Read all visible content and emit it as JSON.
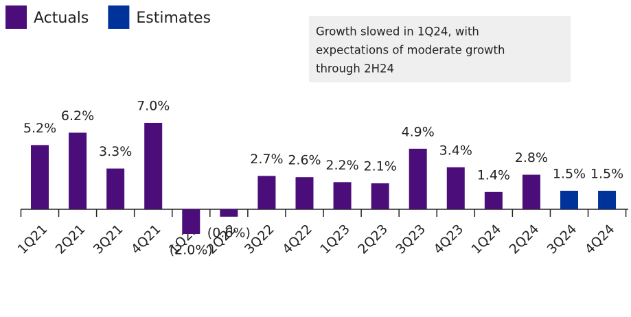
{
  "chart_data": {
    "type": "bar",
    "annotation": [
      "Growth slowed in 1Q24, with",
      "expectations of moderate growth",
      "through 2H24"
    ],
    "categories": [
      "1Q21",
      "2Q21",
      "3Q21",
      "4Q21",
      "1Q22",
      "2Q22",
      "3Q22",
      "4Q22",
      "1Q23",
      "2Q23",
      "3Q23",
      "4Q23",
      "1Q24",
      "2Q24",
      "3Q24",
      "4Q24"
    ],
    "series": [
      {
        "name": "Actuals",
        "color": "#4a0d7a",
        "values": [
          5.2,
          6.2,
          3.3,
          7.0,
          -2.0,
          -0.6,
          2.7,
          2.6,
          2.2,
          2.1,
          4.9,
          3.4,
          1.4,
          2.8,
          null,
          null
        ],
        "value_labels": [
          "5.2%",
          "6.2%",
          "3.3%",
          "7.0%",
          "(2.0%)",
          "(0.6%)",
          "2.7%",
          "2.6%",
          "2.2%",
          "2.1%",
          "4.9%",
          "3.4%",
          "1.4%",
          "2.8%",
          null,
          null
        ]
      },
      {
        "name": "Estimates",
        "color": "#003399",
        "values": [
          null,
          null,
          null,
          null,
          null,
          null,
          null,
          null,
          null,
          null,
          null,
          null,
          null,
          null,
          1.5,
          1.5
        ],
        "value_labels": [
          null,
          null,
          null,
          null,
          null,
          null,
          null,
          null,
          null,
          null,
          null,
          null,
          null,
          null,
          "1.5%",
          "1.5%"
        ]
      }
    ],
    "legend": "top-left"
  }
}
